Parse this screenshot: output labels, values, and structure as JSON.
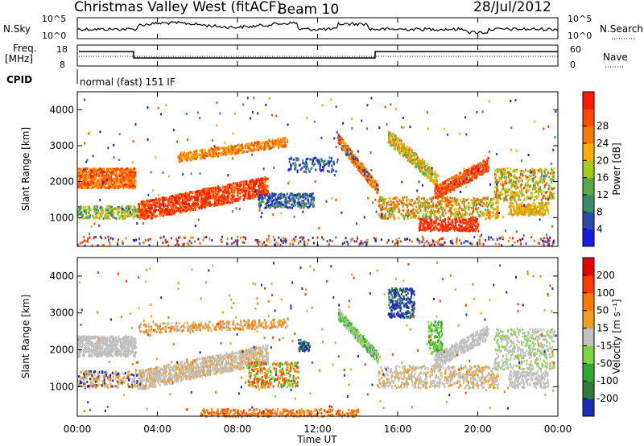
{
  "header": {
    "title": "Christmas Valley West (fitACF)",
    "beam": "Beam 10",
    "date": "28/Jul/2012"
  },
  "noise_panel": {
    "left_label": "N.Sky",
    "right_label": "N.Search",
    "left_ticks": [
      "10^5",
      "10^0"
    ],
    "right_ticks": [
      "10^5",
      "10^0"
    ]
  },
  "freq_panel": {
    "left_label_1": "Freq.",
    "left_label_2": "[MHz]",
    "right_label": "Nave",
    "left_ticks": [
      "18",
      "8"
    ],
    "right_ticks": [
      "60",
      "0"
    ]
  },
  "cpid": {
    "label": "CPID",
    "mode": "normal (fast) 151 IF"
  },
  "x_axis": {
    "label": "Time UT",
    "ticks": [
      "00:00",
      "04:00",
      "08:00",
      "12:00",
      "16:00",
      "20:00",
      "00:00"
    ]
  },
  "chart_data": [
    {
      "type": "heatmap",
      "title": "Power",
      "ylabel": "Slant Range [km]",
      "xlabel": "Time UT",
      "xlim": [
        0,
        24
      ],
      "ylim": [
        200,
        4500
      ],
      "y_ticks": [
        1000,
        2000,
        3000,
        4000
      ],
      "colorbar": {
        "label": "Power [dB]",
        "tick_labels": [
          "4",
          "8",
          "12",
          "16",
          "20",
          "24",
          "28"
        ],
        "colors": [
          "#1a1ae6",
          "#2a4aa8",
          "#3c8c6a",
          "#5aa84a",
          "#a8c81e",
          "#ffb000",
          "#ff7a00",
          "#ff4a00",
          "#ff1a00"
        ]
      }
    },
    {
      "type": "heatmap",
      "title": "Velocity",
      "ylabel": "Slant Range [km]",
      "xlabel": "Time UT",
      "xlim": [
        0,
        24
      ],
      "ylim": [
        200,
        4500
      ],
      "y_ticks": [
        1000,
        2000,
        3000,
        4000
      ],
      "colorbar": {
        "label": "Velocity [m s⁻¹]",
        "tick_labels": [
          "200",
          "100",
          "50",
          "15",
          "-15",
          "-50",
          "-100",
          "-200"
        ],
        "colors": [
          "#1c2ab8",
          "#2f7a3c",
          "#2fa82f",
          "#7fd43f",
          "#c0c0c0",
          "#f0a020",
          "#ff7a00",
          "#ff3a00",
          "#e60000"
        ]
      }
    }
  ]
}
